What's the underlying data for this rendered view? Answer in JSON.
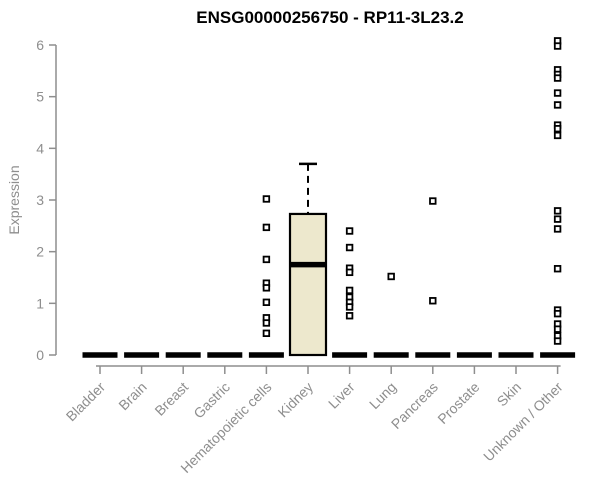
{
  "chart_data": {
    "type": "boxplot",
    "title": "ENSG00000256750 - RP11-3L23.2",
    "xlabel": "",
    "ylabel": "Expression",
    "ylim": [
      0,
      6
    ],
    "yticks": [
      0,
      1,
      2,
      3,
      4,
      5,
      6
    ],
    "grid": false,
    "legend": null,
    "categories": [
      "Bladder",
      "Brain",
      "Breast",
      "Gastric",
      "Hematopoietic cells",
      "Kidney",
      "Liver",
      "Lung",
      "Pancreas",
      "Prostate",
      "Skin",
      "Unknown / Other"
    ],
    "boxes": [
      {
        "category": "Bladder",
        "q1": 0,
        "median": 0,
        "q3": 0,
        "whisker_low": 0,
        "whisker_high": 0,
        "outliers": []
      },
      {
        "category": "Brain",
        "q1": 0,
        "median": 0,
        "q3": 0,
        "whisker_low": 0,
        "whisker_high": 0,
        "outliers": []
      },
      {
        "category": "Breast",
        "q1": 0,
        "median": 0,
        "q3": 0,
        "whisker_low": 0,
        "whisker_high": 0,
        "outliers": []
      },
      {
        "category": "Gastric",
        "q1": 0,
        "median": 0,
        "q3": 0,
        "whisker_low": 0,
        "whisker_high": 0,
        "outliers": []
      },
      {
        "category": "Hematopoietic cells",
        "q1": 0,
        "median": 0,
        "q3": 0,
        "whisker_low": 0,
        "whisker_high": 0,
        "outliers": [
          3.02,
          2.47,
          1.85,
          1.39,
          1.3,
          1.02,
          0.72,
          0.62,
          0.42
        ]
      },
      {
        "category": "Kidney",
        "q1": 0,
        "median": 1.75,
        "q3": 2.73,
        "whisker_low": 0,
        "whisker_high": 3.7,
        "outliers": []
      },
      {
        "category": "Liver",
        "q1": 0,
        "median": 0,
        "q3": 0,
        "whisker_low": 0,
        "whisker_high": 0,
        "outliers": [
          2.4,
          2.08,
          1.68,
          1.6,
          1.25,
          1.12,
          1.02,
          0.93,
          0.76
        ]
      },
      {
        "category": "Lung",
        "q1": 0,
        "median": 0,
        "q3": 0,
        "whisker_low": 0,
        "whisker_high": 0,
        "outliers": [
          1.52
        ]
      },
      {
        "category": "Pancreas",
        "q1": 0,
        "median": 0,
        "q3": 0,
        "whisker_low": 0,
        "whisker_high": 0,
        "outliers": [
          2.98,
          1.05
        ]
      },
      {
        "category": "Prostate",
        "q1": 0,
        "median": 0,
        "q3": 0,
        "whisker_low": 0,
        "whisker_high": 0,
        "outliers": []
      },
      {
        "category": "Skin",
        "q1": 0,
        "median": 0,
        "q3": 0,
        "whisker_low": 0,
        "whisker_high": 0,
        "outliers": []
      },
      {
        "category": "Unknown / Other",
        "q1": 0,
        "median": 0,
        "q3": 0,
        "whisker_low": 0,
        "whisker_high": 0,
        "outliers": [
          6.08,
          5.98,
          5.52,
          5.43,
          5.36,
          5.07,
          4.84,
          4.45,
          4.38,
          4.25,
          2.79,
          2.63,
          2.44,
          1.67,
          0.87,
          0.8,
          0.6,
          0.5,
          0.37,
          0.27
        ]
      }
    ],
    "colors": {
      "background": "#ffffff",
      "box_fill": "#EDE8CD",
      "box_border": "#000000",
      "median": "#000000",
      "whisker": "#000000",
      "outlier_stroke": "#000000",
      "outlier_fill": "#ffffff",
      "axis": "#8e8e8e",
      "tick_label": "#8e8e8e",
      "title": "#000000"
    }
  }
}
